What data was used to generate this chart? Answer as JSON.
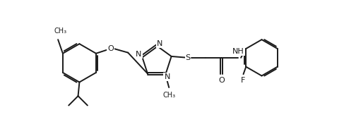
{
  "bg_color": "#ffffff",
  "line_color": "#1a1a1a",
  "line_width": 1.4,
  "font_size_atom": 8.0,
  "figsize": [
    5.04,
    1.9
  ],
  "dpi": 100,
  "xlim": [
    0,
    10.5
  ],
  "ylim": [
    -2.2,
    2.8
  ]
}
